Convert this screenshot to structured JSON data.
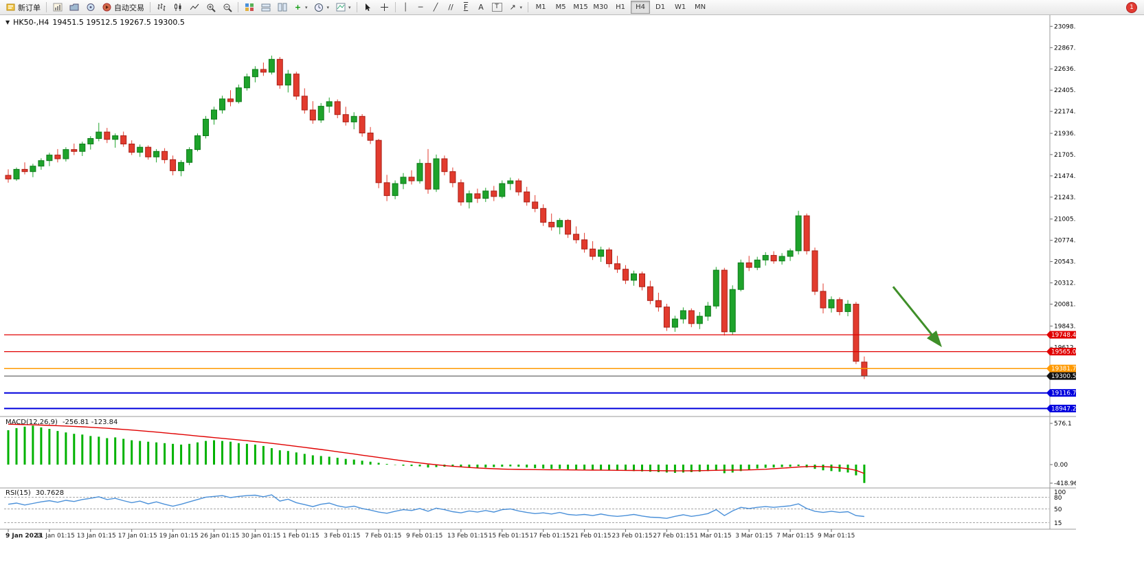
{
  "window": {
    "notification_count": "1"
  },
  "toolbar": {
    "new_order_label": "新订单",
    "autotrading_label": "自动交易",
    "timeframes": [
      "M1",
      "M5",
      "M15",
      "M30",
      "H1",
      "H4",
      "D1",
      "W1",
      "MN"
    ],
    "active_timeframe": "H4",
    "glyphs": {
      "collapse": "▼",
      "caret": "▾",
      "autotrading_play": "▶",
      "cursor": "➤",
      "crosshair": "+",
      "vline": "│",
      "hline": "─",
      "trendline": "╱",
      "channel": "//",
      "fibonacci": "F",
      "text_tool": "A",
      "label_tool": "T",
      "arrows_tool": "↗",
      "zoom_in": "+",
      "zoom_out": "−",
      "add_indicator": "+"
    }
  },
  "chart_header": {
    "symbol": "HK50-,H4",
    "ohlc_text": "19451.5 19512.5 19267.5 19300.5"
  },
  "macd_panel": {
    "name": "MACD(12,26,9)",
    "values": "-256.81 -123.84"
  },
  "rsi_panel": {
    "name": "RSI(15)",
    "value": "30.7628"
  },
  "colors": {
    "bull": "#1ea32b",
    "bull_border": "#0e7a1a",
    "bear": "#e23b2e",
    "bear_border": "#a81f16",
    "macd_hist": "#00b200",
    "macd_signal": "#e00000",
    "rsi": "#4a90d9",
    "grid": "#9a9a9a",
    "arrow": "#3f8f29",
    "line_red": "#e00000",
    "line_orange": "#ff9900",
    "line_blue": "#0000dd",
    "line_black": "#111111"
  },
  "chart_data": [
    {
      "type": "candlestick",
      "title": "HK50-,H4",
      "timeframe": "H4",
      "ylim": [
        18883,
        23190
      ],
      "axis_ticks": [
        "23098.0",
        "22867.0",
        "22636.0",
        "22405.0",
        "22174.0",
        "21936.0",
        "21705.0",
        "21474.0",
        "21243.0",
        "21005.0",
        "20774.0",
        "20543.0",
        "20312.0",
        "20081.0",
        "19843.0",
        "19612.0"
      ],
      "x_label_step": 5,
      "x_labels": [
        "9 Jan 2023",
        "11 Jan 01:15",
        "13 Jan 01:15",
        "17 Jan 01:15",
        "19 Jan 01:15",
        "26 Jan 01:15",
        "30 Jan 01:15",
        "1 Feb 01:15",
        "3 Feb 01:15",
        "7 Feb 01:15",
        "9 Feb 01:15",
        "13 Feb 01:15",
        "15 Feb 01:15",
        "17 Feb 01:15",
        "21 Feb 01:15",
        "23 Feb 01:15",
        "27 Feb 01:15",
        "1 Mar 01:15",
        "3 Mar 01:15",
        "7 Mar 01:15",
        "9 Mar 01:15"
      ],
      "hlines": [
        {
          "price": 19748.4,
          "label": "19748.4",
          "color": "#e00000",
          "badge": "#e00000",
          "width": 1.2
        },
        {
          "price": 19565.0,
          "label": "19565.0",
          "color": "#e00000",
          "badge": "#e00000",
          "width": 1.2
        },
        {
          "price": 19381.7,
          "label": "19381.7",
          "color": "#ff9900",
          "badge": "#ff9900",
          "width": 1.5
        },
        {
          "price": 19300.5,
          "label": "19300.5",
          "color": "#444444",
          "badge": "#111111",
          "width": 1
        },
        {
          "price": 19116.7,
          "label": "19116.7",
          "color": "#0000dd",
          "badge": "#0000dd",
          "width": 2
        },
        {
          "price": 18947.2,
          "label": "18947.2",
          "color": "#0000dd",
          "badge": "#0000dd",
          "width": 2
        }
      ],
      "arrow": {
        "from_index": 107.5,
        "from_price": 20270,
        "to_index": 113.2,
        "to_price": 19640,
        "color": "#3f8f29"
      },
      "ohlc": [
        [
          21480,
          21545,
          21400,
          21440
        ],
        [
          21440,
          21565,
          21420,
          21545
        ],
        [
          21545,
          21620,
          21490,
          21520
        ],
        [
          21520,
          21605,
          21460,
          21580
        ],
        [
          21580,
          21665,
          21540,
          21640
        ],
        [
          21640,
          21725,
          21580,
          21700
        ],
        [
          21700,
          21765,
          21620,
          21660
        ],
        [
          21660,
          21785,
          21630,
          21760
        ],
        [
          21760,
          21825,
          21700,
          21740
        ],
        [
          21740,
          21845,
          21690,
          21820
        ],
        [
          21820,
          21905,
          21760,
          21880
        ],
        [
          21880,
          22050,
          21850,
          21950
        ],
        [
          21950,
          21995,
          21830,
          21870
        ],
        [
          21870,
          21935,
          21780,
          21910
        ],
        [
          21910,
          21955,
          21790,
          21820
        ],
        [
          21820,
          21860,
          21700,
          21730
        ],
        [
          21730,
          21815,
          21680,
          21785
        ],
        [
          21785,
          21805,
          21650,
          21680
        ],
        [
          21680,
          21765,
          21620,
          21740
        ],
        [
          21740,
          21775,
          21610,
          21650
        ],
        [
          21650,
          21695,
          21480,
          21530
        ],
        [
          21530,
          21645,
          21470,
          21620
        ],
        [
          21620,
          21785,
          21590,
          21760
        ],
        [
          21760,
          21935,
          21740,
          21910
        ],
        [
          21910,
          22125,
          21880,
          22090
        ],
        [
          22090,
          22225,
          22030,
          22190
        ],
        [
          22190,
          22345,
          22150,
          22310
        ],
        [
          22310,
          22405,
          22230,
          22280
        ],
        [
          22280,
          22465,
          22260,
          22430
        ],
        [
          22430,
          22585,
          22400,
          22550
        ],
        [
          22550,
          22665,
          22490,
          22630
        ],
        [
          22630,
          22705,
          22560,
          22600
        ],
        [
          22600,
          22780,
          22575,
          22740
        ],
        [
          22740,
          22765,
          22420,
          22460
        ],
        [
          22460,
          22625,
          22380,
          22580
        ],
        [
          22580,
          22605,
          22300,
          22340
        ],
        [
          22340,
          22425,
          22150,
          22190
        ],
        [
          22190,
          22285,
          22040,
          22080
        ],
        [
          22080,
          22265,
          22050,
          22230
        ],
        [
          22230,
          22325,
          22160,
          22280
        ],
        [
          22280,
          22305,
          22100,
          22140
        ],
        [
          22140,
          22225,
          22020,
          22060
        ],
        [
          22060,
          22165,
          21980,
          22120
        ],
        [
          22120,
          22145,
          21900,
          21940
        ],
        [
          21940,
          22005,
          21820,
          21860
        ],
        [
          21860,
          21875,
          21340,
          21400
        ],
        [
          21400,
          21485,
          21200,
          21260
        ],
        [
          21260,
          21425,
          21220,
          21390
        ],
        [
          21390,
          21505,
          21330,
          21460
        ],
        [
          21460,
          21535,
          21380,
          21420
        ],
        [
          21420,
          21655,
          21390,
          21610
        ],
        [
          21610,
          21765,
          21280,
          21330
        ],
        [
          21330,
          21705,
          21300,
          21660
        ],
        [
          21660,
          21695,
          21480,
          21520
        ],
        [
          21520,
          21565,
          21350,
          21400
        ],
        [
          21400,
          21435,
          21150,
          21190
        ],
        [
          21190,
          21315,
          21120,
          21280
        ],
        [
          21280,
          21335,
          21180,
          21230
        ],
        [
          21230,
          21345,
          21190,
          21310
        ],
        [
          21310,
          21365,
          21200,
          21250
        ],
        [
          21250,
          21425,
          21230,
          21390
        ],
        [
          21390,
          21455,
          21320,
          21420
        ],
        [
          21420,
          21445,
          21260,
          21300
        ],
        [
          21300,
          21355,
          21150,
          21190
        ],
        [
          21190,
          21265,
          21080,
          21120
        ],
        [
          21120,
          21165,
          20930,
          20970
        ],
        [
          20970,
          21065,
          20880,
          20920
        ],
        [
          20920,
          21015,
          20840,
          20990
        ],
        [
          20990,
          21005,
          20800,
          20840
        ],
        [
          20840,
          20925,
          20740,
          20780
        ],
        [
          20780,
          20855,
          20640,
          20680
        ],
        [
          20680,
          20765,
          20560,
          20600
        ],
        [
          20600,
          20705,
          20540,
          20670
        ],
        [
          20670,
          20695,
          20480,
          20520
        ],
        [
          20520,
          20605,
          20420,
          20460
        ],
        [
          20460,
          20505,
          20300,
          20340
        ],
        [
          20340,
          20445,
          20280,
          20410
        ],
        [
          20410,
          20435,
          20230,
          20270
        ],
        [
          20270,
          20335,
          20080,
          20120
        ],
        [
          20120,
          20205,
          20000,
          20050
        ],
        [
          20050,
          20085,
          19790,
          19830
        ],
        [
          19830,
          19955,
          19780,
          19920
        ],
        [
          19920,
          20045,
          19870,
          20010
        ],
        [
          20010,
          20035,
          19830,
          19870
        ],
        [
          19870,
          19995,
          19810,
          19950
        ],
        [
          19950,
          20105,
          19900,
          20060
        ],
        [
          20060,
          20485,
          20030,
          20450
        ],
        [
          20450,
          20475,
          19740,
          19780
        ],
        [
          19780,
          20285,
          19750,
          20240
        ],
        [
          20240,
          20565,
          20220,
          20530
        ],
        [
          20530,
          20605,
          20440,
          20480
        ],
        [
          20480,
          20595,
          20450,
          20560
        ],
        [
          20560,
          20645,
          20500,
          20610
        ],
        [
          20610,
          20655,
          20520,
          20550
        ],
        [
          20550,
          20635,
          20510,
          20600
        ],
        [
          20600,
          20685,
          20550,
          20660
        ],
        [
          20660,
          21095,
          20620,
          21040
        ],
        [
          21040,
          21065,
          20620,
          20660
        ],
        [
          20660,
          20695,
          20180,
          20220
        ],
        [
          20220,
          20305,
          19980,
          20040
        ],
        [
          20040,
          20165,
          19990,
          20130
        ],
        [
          20130,
          20155,
          19960,
          20000
        ],
        [
          20000,
          20125,
          19950,
          20080
        ],
        [
          20080,
          20105,
          19430,
          19460
        ],
        [
          19451.5,
          19512.5,
          19267.5,
          19300.5
        ]
      ]
    },
    {
      "type": "bar",
      "name": "MACD(12,26,9)",
      "current_values": [
        -256.81,
        -123.84
      ],
      "ylim": [
        -418.96,
        576.1
      ],
      "axis_labels": [
        "576.1",
        "0.00",
        "-418.96"
      ],
      "values": [
        480,
        510,
        530,
        545,
        520,
        500,
        470,
        450,
        430,
        420,
        400,
        390,
        370,
        380,
        360,
        340,
        330,
        320,
        310,
        300,
        290,
        280,
        290,
        310,
        330,
        340,
        330,
        320,
        300,
        290,
        280,
        260,
        230,
        200,
        190,
        170,
        150,
        130,
        120,
        110,
        95,
        80,
        70,
        55,
        40,
        25,
        10,
        -5,
        -15,
        -20,
        -25,
        -40,
        -35,
        -30,
        -30,
        -35,
        -40,
        -45,
        -40,
        -35,
        -30,
        -25,
        -30,
        -40,
        -50,
        -55,
        -60,
        -60,
        -65,
        -70,
        -70,
        -75,
        -75,
        -80,
        -85,
        -85,
        -90,
        -95,
        -100,
        -105,
        -110,
        -115,
        -110,
        -105,
        -100,
        -90,
        -80,
        -120,
        -110,
        -90,
        -70,
        -55,
        -45,
        -40,
        -35,
        -30,
        -20,
        -40,
        -60,
        -80,
        -90,
        -100,
        -110,
        -150,
        -256.8
      ],
      "signal": [
        565,
        562,
        559,
        556,
        552,
        548,
        544,
        539,
        534,
        528,
        522,
        515,
        508,
        500,
        492,
        483,
        474,
        464,
        454,
        444,
        433,
        422,
        411,
        400,
        389,
        378,
        367,
        356,
        345,
        334,
        322,
        310,
        297,
        284,
        270,
        256,
        241,
        226,
        211,
        196,
        180,
        164,
        148,
        132,
        116,
        100,
        84,
        68,
        52,
        37,
        23,
        10,
        -2,
        -13,
        -23,
        -32,
        -40,
        -47,
        -53,
        -58,
        -62,
        -65,
        -67,
        -69,
        -70,
        -71,
        -72,
        -73,
        -74,
        -75,
        -76,
        -77,
        -78,
        -79,
        -80,
        -81,
        -82,
        -83,
        -84,
        -85,
        -86,
        -87,
        -87,
        -86,
        -85,
        -83,
        -80,
        -78,
        -77,
        -76,
        -74,
        -70,
        -65,
        -58,
        -50,
        -42,
        -34,
        -28,
        -26,
        -28,
        -34,
        -44,
        -58,
        -80,
        -123.8
      ]
    },
    {
      "type": "line",
      "name": "RSI(15)",
      "current_value": 30.7628,
      "ylim": [
        0,
        100
      ],
      "axis_labels": [
        "100",
        "80",
        "50",
        "15"
      ],
      "levels": [
        80,
        50,
        15
      ],
      "values": [
        62,
        65,
        60,
        64,
        68,
        71,
        67,
        72,
        69,
        74,
        77,
        81,
        74,
        77,
        71,
        66,
        70,
        63,
        68,
        62,
        57,
        62,
        68,
        74,
        80,
        82,
        84,
        79,
        82,
        84,
        85,
        81,
        86,
        70,
        75,
        66,
        61,
        56,
        62,
        65,
        58,
        54,
        57,
        51,
        47,
        42,
        39,
        44,
        48,
        46,
        51,
        44,
        52,
        48,
        43,
        40,
        45,
        42,
        46,
        42,
        48,
        50,
        45,
        41,
        38,
        40,
        37,
        41,
        36,
        34,
        36,
        33,
        37,
        33,
        31,
        33,
        36,
        32,
        29,
        28,
        26,
        31,
        35,
        31,
        34,
        38,
        48,
        33,
        45,
        54,
        51,
        54,
        56,
        54,
        56,
        58,
        63,
        51,
        44,
        41,
        44,
        41,
        43,
        33,
        30.76
      ]
    }
  ]
}
